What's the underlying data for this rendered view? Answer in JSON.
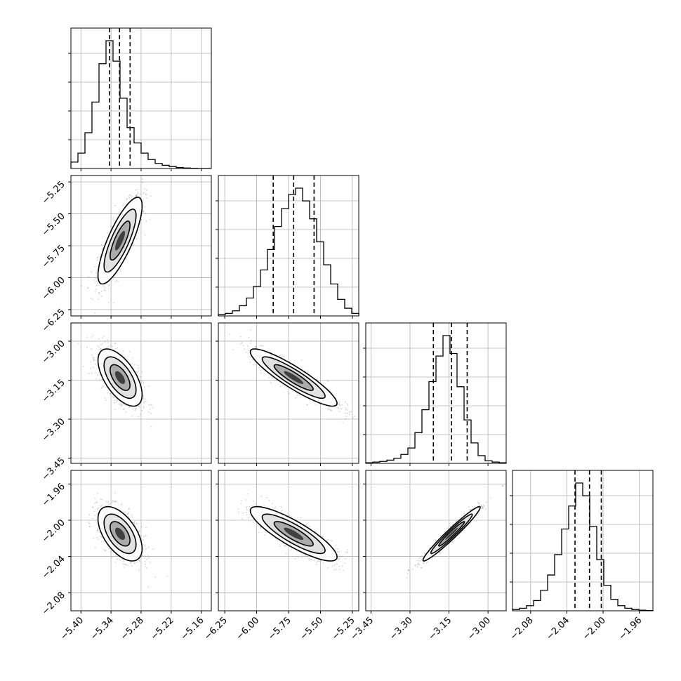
{
  "chart_data": {
    "type": "corner",
    "grid": true,
    "num_params": 4,
    "params": [
      {
        "range": [
          -5.42,
          -5.14
        ],
        "ticks": [
          -5.4,
          -5.34,
          -5.28,
          -5.22,
          -5.16
        ],
        "tick_labels": [
          "−5.40",
          "−5.34",
          "−5.28",
          "−5.22",
          "−5.16"
        ],
        "quantiles": [
          -5.343,
          -5.323,
          -5.302
        ],
        "hist": [
          0.05,
          0.12,
          0.28,
          0.52,
          0.82,
          1.0,
          0.84,
          0.55,
          0.32,
          0.2,
          0.12,
          0.07,
          0.04,
          0.025,
          0.015,
          0.008,
          0.004,
          0.002,
          0.0,
          0.0
        ]
      },
      {
        "range": [
          -6.3,
          -5.2
        ],
        "ticks": [
          -6.25,
          -6.0,
          -5.75,
          -5.5,
          -5.25
        ],
        "tick_labels": [
          "−6.25",
          "−6.00",
          "−5.75",
          "−5.50",
          "−5.25"
        ],
        "quantiles": [
          -5.87,
          -5.71,
          -5.55
        ],
        "hist": [
          0.01,
          0.02,
          0.04,
          0.08,
          0.14,
          0.23,
          0.36,
          0.52,
          0.7,
          0.84,
          0.95,
          1.0,
          0.9,
          0.76,
          0.58,
          0.4,
          0.25,
          0.13,
          0.06,
          0.02
        ]
      },
      {
        "range": [
          -3.47,
          -2.93
        ],
        "ticks": [
          -3.45,
          -3.3,
          -3.15,
          -3.0
        ],
        "tick_labels": [
          "−3.45",
          "−3.30",
          "−3.15",
          "−3.00"
        ],
        "quantiles": [
          -3.21,
          -3.14,
          -3.08
        ],
        "hist": [
          0.005,
          0.01,
          0.015,
          0.025,
          0.04,
          0.07,
          0.12,
          0.24,
          0.42,
          0.64,
          0.84,
          1.0,
          0.86,
          0.6,
          0.34,
          0.16,
          0.06,
          0.02,
          0.01,
          0.005
        ]
      },
      {
        "range": [
          -2.1,
          -1.945
        ],
        "ticks": [
          -2.08,
          -2.04,
          -2.0,
          -1.96
        ],
        "tick_labels": [
          "−2.08",
          "−2.04",
          "−2.00",
          "−1.96"
        ],
        "quantiles": [
          -2.031,
          -2.015,
          -2.002
        ],
        "hist": [
          0.01,
          0.02,
          0.04,
          0.08,
          0.16,
          0.28,
          0.44,
          0.64,
          0.82,
          1.0,
          0.9,
          0.66,
          0.4,
          0.2,
          0.09,
          0.04,
          0.02,
          0.01,
          0.005,
          0.002
        ]
      }
    ],
    "posterior": {
      "mean": [
        -5.322,
        -5.71,
        -3.14,
        -2.015
      ],
      "sd": [
        0.022,
        0.17,
        0.055,
        0.015
      ],
      "corr": [
        [
          1.0,
          0.8,
          -0.6,
          -0.55
        ],
        [
          0.8,
          1.0,
          -0.9,
          -0.85
        ],
        [
          -0.6,
          -0.9,
          1.0,
          0.97
        ],
        [
          -0.55,
          -0.85,
          0.97,
          1.0
        ]
      ]
    }
  }
}
